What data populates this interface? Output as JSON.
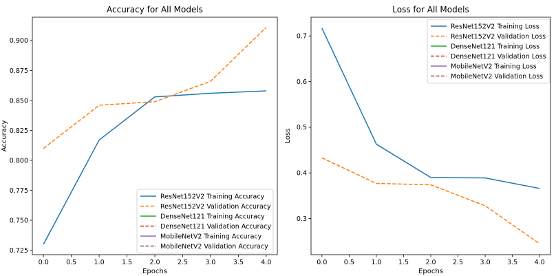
{
  "chart_data": [
    {
      "type": "line",
      "title": "Accuracy for All Models",
      "xlabel": "Epochs",
      "ylabel": "Accuracy",
      "xlim": [
        -0.2,
        4.2
      ],
      "ylim": [
        0.7213,
        0.9195
      ],
      "xticks": [
        0.0,
        0.5,
        1.0,
        1.5,
        2.0,
        2.5,
        3.0,
        3.5,
        4.0
      ],
      "xtick_labels": [
        "0.0",
        "0.5",
        "1.0",
        "1.5",
        "2.0",
        "2.5",
        "3.0",
        "3.5",
        "4.0"
      ],
      "yticks": [
        0.725,
        0.75,
        0.775,
        0.8,
        0.825,
        0.85,
        0.875,
        0.9
      ],
      "ytick_labels": [
        "0.725",
        "0.750",
        "0.775",
        "0.800",
        "0.825",
        "0.850",
        "0.875",
        "0.900"
      ],
      "legend_position": "lower-right",
      "grid": false,
      "series": [
        {
          "name": "ResNet152V2 Training Accuracy",
          "x": [
            0,
            1,
            2,
            3,
            4
          ],
          "values": [
            0.73,
            0.817,
            0.853,
            0.856,
            0.858
          ],
          "color": "#1f77b4",
          "dash": "solid"
        },
        {
          "name": "ResNet152V2 Validation Accuracy",
          "x": [
            0,
            1,
            2,
            3,
            4
          ],
          "values": [
            0.81,
            0.846,
            0.849,
            0.866,
            0.911
          ],
          "color": "#ff7f0e",
          "dash": "dashed"
        },
        {
          "name": "DenseNet121 Training Accuracy",
          "x": [],
          "values": [],
          "color": "#2ca02c",
          "dash": "solid"
        },
        {
          "name": "DenseNet121 Validation Accuracy",
          "x": [],
          "values": [],
          "color": "#d62728",
          "dash": "dashed"
        },
        {
          "name": "MobileNetV2 Training Accuracy",
          "x": [],
          "values": [],
          "color": "#9467bd",
          "dash": "solid"
        },
        {
          "name": "MobileNetV2 Validation Accuracy",
          "x": [],
          "values": [],
          "color": "#8c564b",
          "dash": "dashed"
        }
      ]
    },
    {
      "type": "line",
      "title": "Loss for All Models",
      "xlabel": "Epochs",
      "ylabel": "Loss",
      "xlim": [
        -0.2,
        4.2
      ],
      "ylim": [
        0.221,
        0.741
      ],
      "xticks": [
        0.0,
        0.5,
        1.0,
        1.5,
        2.0,
        2.5,
        3.0,
        3.5,
        4.0
      ],
      "xtick_labels": [
        "0.0",
        "0.5",
        "1.0",
        "1.5",
        "2.0",
        "2.5",
        "3.0",
        "3.5",
        "4.0"
      ],
      "yticks": [
        0.3,
        0.4,
        0.5,
        0.6,
        0.7
      ],
      "ytick_labels": [
        "0.3",
        "0.4",
        "0.5",
        "0.6",
        "0.7"
      ],
      "legend_position": "upper-right",
      "grid": false,
      "series": [
        {
          "name": "ResNet152V2 Training Loss",
          "x": [
            0,
            1,
            2,
            3,
            4
          ],
          "values": [
            0.717,
            0.463,
            0.39,
            0.389,
            0.366
          ],
          "color": "#1f77b4",
          "dash": "solid"
        },
        {
          "name": "ResNet152V2 Validation Loss",
          "x": [
            0,
            1,
            2,
            3,
            4
          ],
          "values": [
            0.433,
            0.377,
            0.374,
            0.328,
            0.245
          ],
          "color": "#ff7f0e",
          "dash": "dashed"
        },
        {
          "name": "DenseNet121 Training Loss",
          "x": [],
          "values": [],
          "color": "#2ca02c",
          "dash": "solid"
        },
        {
          "name": "DenseNet121 Validation Loss",
          "x": [],
          "values": [],
          "color": "#d62728",
          "dash": "dashed"
        },
        {
          "name": "MobileNetV2 Training Loss",
          "x": [],
          "values": [],
          "color": "#9467bd",
          "dash": "solid"
        },
        {
          "name": "MobileNetV2 Validation Loss",
          "x": [],
          "values": [],
          "color": "#8c564b",
          "dash": "dashed"
        }
      ]
    }
  ]
}
